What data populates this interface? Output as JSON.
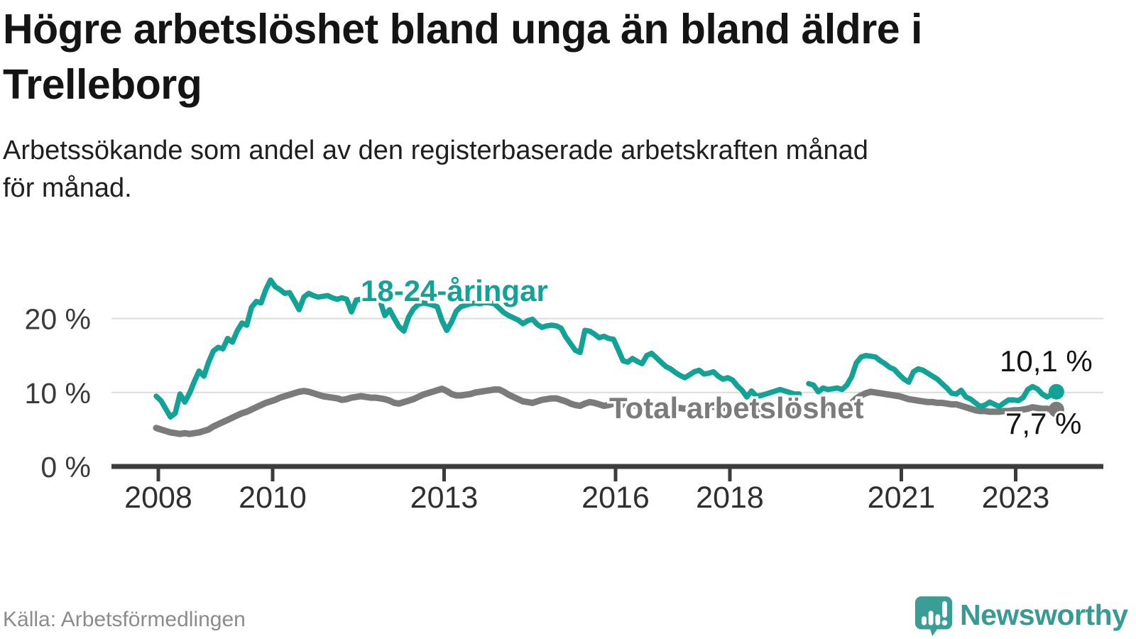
{
  "header": {
    "title_lines": [
      "Högre arbetslöshet bland unga än bland äldre i",
      "Trelleborg"
    ],
    "subtitle_lines": [
      "Arbetssökande som andel av den registerbaserade arbetskraften månad",
      "för månad."
    ]
  },
  "footer": {
    "source": "Källa: Arbetsförmedlingen",
    "brand": "Newsworthy"
  },
  "colors": {
    "young_line": "#12a296",
    "total_line": "#7b7b7b",
    "value_label": "#141414",
    "axis": "#3c3c3c",
    "grid": "#dcdcdc",
    "logo_teal": "#3a9d96"
  },
  "chart_data": {
    "type": "line",
    "title": "Högre arbetslöshet bland unga än bland äldre i Trelleborg",
    "subtitle": "Arbetssökande som andel av den registerbaserade arbetskraften månad för månad.",
    "unit": "%",
    "frequency": "monthly",
    "x_start": "2008-01",
    "x_end": "2023-10",
    "grid": "horizontal-only",
    "legend_position": "inline-labels",
    "ylim": [
      0,
      26
    ],
    "y_ticks": [
      {
        "value": 0,
        "label": "0 %"
      },
      {
        "value": 10,
        "label": "10 %"
      },
      {
        "value": 20,
        "label": "20 %"
      }
    ],
    "x_ticks": [
      {
        "year": 2008,
        "label": "2008"
      },
      {
        "year": 2010,
        "label": "2010"
      },
      {
        "year": 2013,
        "label": "2013"
      },
      {
        "year": 2016,
        "label": "2016"
      },
      {
        "year": 2018,
        "label": "2018"
      },
      {
        "year": 2021,
        "label": "2021"
      },
      {
        "year": 2023,
        "label": "2023"
      }
    ],
    "series": [
      {
        "name": "18-24-åringar",
        "color": "#12a296",
        "end_label": "10,1 %",
        "end_value": 10.1,
        "values": [
          9.5,
          8.9,
          7.8,
          6.7,
          7.2,
          9.8,
          8.7,
          9.9,
          11.5,
          12.9,
          12.2,
          14.1,
          15.6,
          16.1,
          15.9,
          17.3,
          16.8,
          18.3,
          19.4,
          19.1,
          21.5,
          22.3,
          22.1,
          23.9,
          25.2,
          24.3,
          23.9,
          23.4,
          23.5,
          22.4,
          21.2,
          22.9,
          23.4,
          23.1,
          22.9,
          23.0,
          23.1,
          22.8,
          22.6,
          22.8,
          22.6,
          20.9,
          22.5,
          22.6,
          22.7,
          22.6,
          22.5,
          22.4,
          20.4,
          21.2,
          20.0,
          18.9,
          18.3,
          20.2,
          21.3,
          21.9,
          22.1,
          22.0,
          21.8,
          21.6,
          19.7,
          18.4,
          19.5,
          21.0,
          21.6,
          21.8,
          22.0,
          22.1,
          22.0,
          22.2,
          22.1,
          22.0,
          21.4,
          20.8,
          20.4,
          20.1,
          19.8,
          19.3,
          19.7,
          19.9,
          19.2,
          18.8,
          19.0,
          19.1,
          19.0,
          18.7,
          17.5,
          16.6,
          15.7,
          15.4,
          18.4,
          18.3,
          17.9,
          17.4,
          17.6,
          17.3,
          17.2,
          15.8,
          14.3,
          14.1,
          14.6,
          14.2,
          13.9,
          15.0,
          15.3,
          14.7,
          14.1,
          13.5,
          13.2,
          12.7,
          12.3,
          12.0,
          12.4,
          12.8,
          13.0,
          12.5,
          12.6,
          12.8,
          12.2,
          11.8,
          12.0,
          11.7,
          10.9,
          10.3,
          9.4,
          10.2,
          9.5,
          9.6,
          9.8,
          10.0,
          10.2,
          10.4,
          10.2,
          10.0,
          9.8,
          9.8,
          null,
          11.2,
          11.0,
          10.1,
          10.6,
          10.4,
          10.5,
          10.6,
          10.4,
          11.0,
          12.1,
          14.0,
          14.8,
          15.0,
          14.9,
          14.8,
          14.3,
          13.9,
          13.4,
          13.1,
          12.4,
          11.8,
          11.4,
          12.8,
          13.2,
          13.0,
          12.6,
          12.2,
          11.8,
          11.2,
          10.6,
          9.9,
          9.8,
          10.3,
          9.4,
          9.1,
          8.6,
          8.1,
          8.3,
          8.7,
          8.4,
          8.1,
          8.6,
          9.0,
          9.0,
          8.9,
          9.3,
          10.4,
          10.8,
          10.5,
          9.8,
          9.4,
          9.7,
          10.1
        ]
      },
      {
        "name": "Total arbetslöshet",
        "color": "#7b7b7b",
        "end_label": "7,7 %",
        "end_value": 7.7,
        "values": [
          5.2,
          5.0,
          4.8,
          4.6,
          4.5,
          4.4,
          4.5,
          4.4,
          4.5,
          4.6,
          4.8,
          5.0,
          5.4,
          5.7,
          6.0,
          6.3,
          6.6,
          6.9,
          7.2,
          7.4,
          7.7,
          8.0,
          8.3,
          8.6,
          8.8,
          9.0,
          9.3,
          9.5,
          9.7,
          9.9,
          10.1,
          10.2,
          10.1,
          9.9,
          9.7,
          9.5,
          9.4,
          9.3,
          9.2,
          9.0,
          9.1,
          9.3,
          9.4,
          9.5,
          9.4,
          9.3,
          9.3,
          9.2,
          9.1,
          8.9,
          8.6,
          8.5,
          8.7,
          8.9,
          9.1,
          9.4,
          9.7,
          9.9,
          10.1,
          10.3,
          10.5,
          10.2,
          9.8,
          9.6,
          9.6,
          9.7,
          9.8,
          10.0,
          10.1,
          10.2,
          10.3,
          10.4,
          10.4,
          10.1,
          9.7,
          9.4,
          9.1,
          8.8,
          8.7,
          8.6,
          8.8,
          9.0,
          9.1,
          9.2,
          9.2,
          9.0,
          8.8,
          8.5,
          8.3,
          8.2,
          8.5,
          8.7,
          8.6,
          8.4,
          8.2,
          8.3,
          8.5,
          8.6,
          8.4,
          8.2,
          8.3,
          8.2,
          8.1,
          8.2,
          8.3,
          8.2,
          8.1,
          8.0,
          8.0,
          7.9,
          7.9,
          7.8,
          7.9,
          8.0,
          8.1,
          8.0,
          8.0,
          8.1,
          8.0,
          7.9,
          7.9,
          7.8,
          7.7,
          7.6,
          7.5,
          7.6,
          7.5,
          7.5,
          7.6,
          7.5,
          7.5,
          7.6,
          7.6,
          7.5,
          7.5,
          7.4,
          7.5,
          7.8,
          7.9,
          7.8,
          7.8,
          7.9,
          7.9,
          8.0,
          8.0,
          8.2,
          8.6,
          9.2,
          9.6,
          9.9,
          10.1,
          10.0,
          9.9,
          9.8,
          9.7,
          9.6,
          9.5,
          9.3,
          9.1,
          9.0,
          8.9,
          8.8,
          8.7,
          8.7,
          8.6,
          8.6,
          8.5,
          8.4,
          8.4,
          8.2,
          8.0,
          7.8,
          7.6,
          7.5,
          7.5,
          7.4,
          7.4,
          7.4,
          7.5,
          7.5,
          7.6,
          7.6,
          7.7,
          7.8,
          8.0,
          7.9,
          7.8,
          7.8,
          7.7,
          7.7
        ]
      }
    ]
  }
}
